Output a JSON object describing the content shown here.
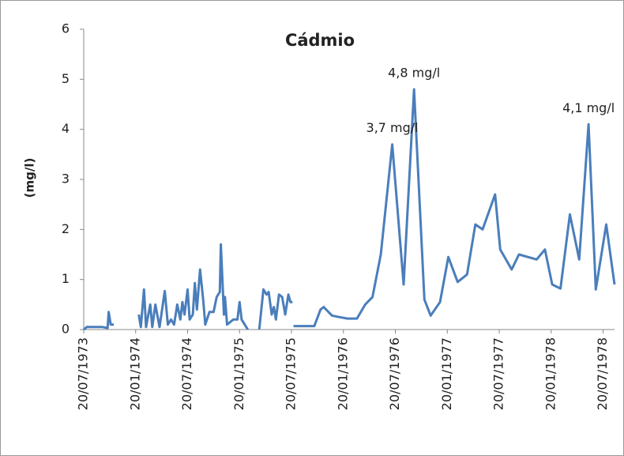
{
  "chart_data": {
    "type": "line",
    "title": "Cádmio",
    "y_label": "(mg/l)",
    "x": [
      1973.55,
      1973.58,
      1973.73,
      1973.78,
      1973.79,
      1973.81,
      1973.84,
      null,
      1974.08,
      1974.1,
      1974.13,
      1974.15,
      1974.19,
      1974.21,
      1974.24,
      1974.28,
      1974.33,
      1974.36,
      1974.39,
      1974.42,
      1974.45,
      1974.48,
      1974.5,
      1974.52,
      1974.55,
      1974.57,
      1974.6,
      1974.62,
      1974.64,
      1974.67,
      1974.7,
      1974.72,
      1974.76,
      1974.8,
      1974.83,
      1974.86,
      1974.87,
      1974.9,
      1974.91,
      1974.93,
      1974.99,
      1975.03,
      1975.05,
      1975.07,
      1975.1,
      1975.13,
      null,
      1975.24,
      1975.28,
      1975.31,
      1975.33,
      1975.36,
      1975.38,
      1975.4,
      1975.43,
      1975.46,
      1975.49,
      1975.52,
      1975.54,
      1975.56,
      null,
      1975.57,
      1975.77,
      1975.83,
      1975.86,
      1975.94,
      1976.01,
      1976.09,
      1976.18,
      1976.26,
      1976.33,
      1976.41,
      1976.52,
      1976.63,
      1976.73,
      1976.83,
      1976.89,
      1976.98,
      1977.06,
      1977.15,
      1977.24,
      1977.32,
      1977.39,
      1977.51,
      1977.56,
      1977.67,
      1977.74,
      1977.91,
      1977.99,
      1978.06,
      1978.14,
      1978.23,
      1978.32,
      1978.41,
      1978.48,
      1978.58,
      1978.66
    ],
    "series": [
      {
        "color": "#4a7ebb",
        "values": [
          0,
          0.05,
          0.05,
          0.03,
          0.35,
          0.1,
          0.1,
          null,
          0.3,
          0.05,
          0.8,
          0.05,
          0.5,
          0.05,
          0.5,
          0.05,
          0.77,
          0.1,
          0.2,
          0.1,
          0.5,
          0.2,
          0.55,
          0.3,
          0.8,
          0.2,
          0.3,
          0.93,
          0.4,
          1.2,
          0.6,
          0.1,
          0.35,
          0.35,
          0.65,
          0.75,
          1.7,
          0.3,
          0.65,
          0.1,
          0.2,
          0.2,
          0.55,
          0.2,
          0.1,
          0,
          null,
          0,
          0.8,
          0.7,
          0.75,
          0.3,
          0.45,
          0.2,
          0.7,
          0.65,
          0.3,
          0.7,
          0.55,
          0.55,
          null,
          0.07,
          0.07,
          0.4,
          0.45,
          0.28,
          0.25,
          0.22,
          0.22,
          0.5,
          0.65,
          1.5,
          3.7,
          0.9,
          4.8,
          0.6,
          0.28,
          0.55,
          1.45,
          0.95,
          1.1,
          2.1,
          2.0,
          2.7,
          1.6,
          1.2,
          1.5,
          1.4,
          1.6,
          0.9,
          0.82,
          2.3,
          1.4,
          4.1,
          0.8,
          2.1,
          0.9
        ],
        "value_labels": [
          null,
          null,
          null,
          null,
          null,
          null,
          null,
          null,
          null,
          null,
          null,
          null,
          null,
          null,
          null,
          null,
          null,
          null,
          null,
          null,
          null,
          null,
          null,
          null,
          null,
          null,
          null,
          null,
          null,
          null,
          null,
          null,
          null,
          null,
          null,
          null,
          null,
          null,
          null,
          null,
          null,
          null,
          null,
          null,
          null,
          null,
          null,
          null,
          null,
          null,
          null,
          null,
          null,
          null,
          null,
          null,
          null,
          null,
          null,
          null,
          null,
          null,
          null,
          null,
          null,
          null,
          null,
          null,
          null,
          null,
          null,
          null,
          "3,7 mg/l",
          null,
          "4,8 mg/l",
          null,
          null,
          null,
          null,
          null,
          null,
          null,
          null,
          null,
          null,
          null,
          null,
          null,
          null,
          null,
          null,
          null,
          null,
          "4,1 mg/l",
          null,
          null,
          null
        ]
      }
    ],
    "xlim": [
      1973.55,
      1978.66
    ],
    "xticks": [
      {
        "value": 1973.55,
        "label": "20/07/1973"
      },
      {
        "value": 1974.05,
        "label": "20/01/1974"
      },
      {
        "value": 1974.55,
        "label": "20/07/1974"
      },
      {
        "value": 1975.05,
        "label": "20/01/1975"
      },
      {
        "value": 1975.55,
        "label": "20/07/1975"
      },
      {
        "value": 1976.05,
        "label": "20/01/1976"
      },
      {
        "value": 1976.55,
        "label": "20/07/1976"
      },
      {
        "value": 1977.05,
        "label": "20/01/1977"
      },
      {
        "value": 1977.55,
        "label": "20/07/1977"
      },
      {
        "value": 1978.05,
        "label": "20/01/1978"
      },
      {
        "value": 1978.55,
        "label": "20/07/1978"
      }
    ],
    "ylim": [
      0,
      6
    ],
    "yticks": [
      0,
      1,
      2,
      3,
      4,
      5,
      6
    ],
    "grid": false
  }
}
